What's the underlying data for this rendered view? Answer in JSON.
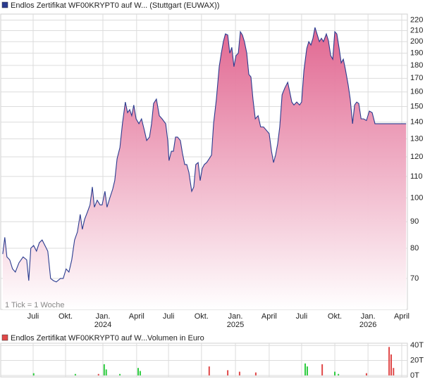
{
  "chart_data": [
    {
      "type": "area",
      "title": "Endlos Zertifikat WF00KRYPT0 auf W... (Stuttgart (EUWAX))",
      "note": "1 Tick = 1 Woche",
      "log_scale": true,
      "grid": true,
      "xlim": [
        -0.5,
        157.5
      ],
      "ylim": [
        61,
        226
      ],
      "yticks": [
        70,
        80,
        90,
        100,
        110,
        120,
        130,
        140,
        150,
        160,
        170,
        180,
        190,
        200,
        210,
        220
      ],
      "xticks": [
        {
          "value": 12.1,
          "label": "Juli"
        },
        {
          "value": 24.7,
          "label": "Okt."
        },
        {
          "value": 39.2,
          "label": "Jan.",
          "year": "2024"
        },
        {
          "value": 52.3,
          "label": "April"
        },
        {
          "value": 64.7,
          "label": "Juli"
        },
        {
          "value": 77.5,
          "label": "Okt."
        },
        {
          "value": 90.7,
          "label": "Jan.",
          "year": "2025"
        },
        {
          "value": 103.8,
          "label": "April"
        },
        {
          "value": 116.4,
          "label": "Juli"
        },
        {
          "value": 129.3,
          "label": "Okt."
        },
        {
          "value": 142.2,
          "label": "Jan.",
          "year": "2026"
        },
        {
          "value": 155.3,
          "label": "April"
        }
      ],
      "series": [
        {
          "color": "#2a3b8f",
          "fill_color": "#e0608c",
          "x": [
            0.3,
            1.1,
            1.9,
            3.0,
            4.1,
            5.2,
            6.6,
            8.2,
            9.6,
            10.4,
            11.2,
            12.3,
            13.4,
            14.5,
            15.6,
            16.7,
            17.8,
            18.9,
            20.0,
            21.1,
            22.7,
            23.8,
            24.9,
            26.0,
            27.1,
            28.2,
            29.3,
            30.4,
            31.2,
            32.1,
            33.2,
            34.2,
            35.1,
            35.9,
            37.0,
            38.1,
            38.9,
            40.0,
            40.8,
            41.9,
            43.0,
            43.8,
            44.7,
            45.8,
            46.8,
            47.9,
            48.8,
            49.6,
            50.4,
            51.2,
            52.1,
            53.2,
            54.2,
            55.3,
            56.2,
            57.3,
            58.1,
            58.9,
            60.0,
            61.1,
            62.2,
            63.6,
            64.4,
            64.9,
            65.8,
            66.6,
            67.4,
            68.2,
            69.3,
            70.1,
            71.0,
            71.8,
            72.6,
            73.7,
            74.5,
            75.3,
            76.2,
            77.0,
            77.8,
            78.6,
            79.5,
            80.5,
            81.4,
            82.2,
            83.3,
            84.4,
            85.2,
            86.0,
            86.8,
            87.7,
            88.5,
            89.3,
            90.1,
            90.9,
            91.8,
            92.6,
            93.4,
            94.2,
            95.1,
            95.9,
            96.7,
            97.5,
            98.4,
            99.5,
            100.5,
            101.6,
            102.7,
            103.8,
            104.7,
            105.5,
            106.3,
            107.1,
            107.9,
            108.8,
            109.9,
            111.0,
            111.8,
            112.6,
            113.4,
            114.5,
            115.6,
            116.4,
            117.3,
            118.4,
            119.2,
            120.0,
            120.8,
            121.6,
            122.5,
            123.3,
            124.1,
            124.9,
            126.0,
            126.8,
            127.7,
            128.5,
            129.3,
            130.1,
            131.0,
            131.8,
            132.6,
            133.4,
            134.5,
            135.3,
            136.2,
            137.0,
            137.8,
            138.6,
            139.5,
            140.5,
            141.6,
            142.7,
            143.8,
            144.9,
            147.1,
            152.6,
            157.0
          ],
          "values": [
            78,
            84,
            77,
            76,
            73,
            72,
            75,
            77,
            76,
            69.3,
            80,
            81,
            79,
            82,
            83,
            81,
            79,
            70,
            69.3,
            68.9,
            70,
            70,
            73,
            72,
            76,
            83,
            86,
            93,
            87,
            91,
            94,
            97,
            105,
            96,
            99,
            97,
            97,
            103,
            96,
            100,
            104,
            108,
            119,
            125,
            139,
            153,
            146,
            148,
            144,
            151,
            142,
            139,
            142,
            135,
            129,
            131,
            139,
            152,
            155,
            144,
            142,
            139,
            129,
            118,
            123,
            123,
            131,
            131,
            129,
            122,
            116,
            116,
            112,
            103,
            105,
            116,
            117,
            108,
            114,
            116,
            117,
            119,
            121,
            139,
            155,
            179,
            190,
            200,
            207,
            206,
            190,
            195,
            179,
            188,
            190,
            209,
            206,
            200,
            190,
            173,
            171,
            155,
            142,
            144,
            137,
            137,
            135,
            133,
            123,
            117,
            121,
            127,
            137,
            158,
            163,
            167,
            160,
            153,
            151,
            153,
            151,
            153,
            176,
            194,
            200,
            197,
            203,
            213,
            206,
            200,
            203,
            200,
            207,
            201,
            188,
            185,
            209,
            207,
            194,
            182,
            185,
            177,
            165,
            155,
            139,
            151,
            153,
            152,
            142,
            142,
            141,
            147,
            146,
            139,
            139,
            139,
            139
          ]
        }
      ]
    },
    {
      "type": "bar",
      "title": "Endlos Zertifikat WF00KRYPT0 auf W...",
      "unit_label": "Volumen in Euro",
      "legend_color": "#e04848",
      "grid": true,
      "xlim": [
        -0.5,
        157.5
      ],
      "ylim": [
        -2000,
        43000
      ],
      "yticks": [
        {
          "value": 0,
          "label": "0T"
        },
        {
          "value": 20000,
          "label": "20T"
        },
        {
          "value": 40000,
          "label": "40T"
        }
      ],
      "x": [
        12.3,
        28.5,
        37.5,
        39.7,
        40.5,
        45.8,
        52.9,
        53.7,
        80.5,
        87.7,
        92.3,
        98.6,
        117.8,
        118.6,
        124.4,
        129.3,
        130.7,
        141.6,
        150.4,
        151.2,
        152.1
      ],
      "values": [
        3000,
        2000,
        2000,
        15000,
        8000,
        2000,
        10000,
        6000,
        12000,
        7000,
        5000,
        4000,
        16000,
        12000,
        15000,
        5000,
        2000,
        3000,
        38000,
        28000,
        10000
      ],
      "bar_colors": [
        "#2ecc40",
        "#2ecc40",
        "#e04848",
        "#2ecc40",
        "#2ecc40",
        "#2ecc40",
        "#2ecc40",
        "#2ecc40",
        "#e04848",
        "#e04848",
        "#e04848",
        "#e04848",
        "#2ecc40",
        "#2ecc40",
        "#e04848",
        "#2ecc40",
        "#2ecc40",
        "#e04848",
        "#e04848",
        "#e04848",
        "#e04848"
      ]
    }
  ]
}
